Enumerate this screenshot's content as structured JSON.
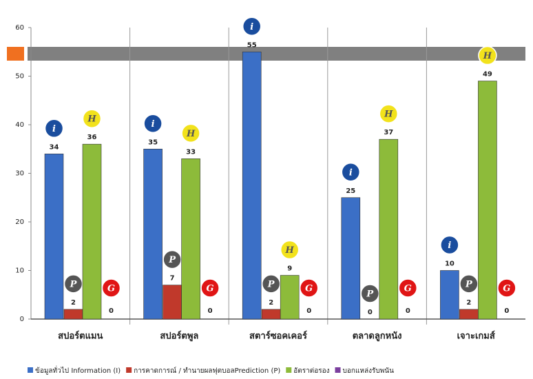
{
  "chart_data": {
    "type": "bar",
    "categories": [
      "สปอร์ตแมน",
      "สปอร์ตพูล",
      "สตาร์ซอคเคอร์",
      "ตลาดลูกหนัง",
      "เจาะเกมส์"
    ],
    "series": [
      {
        "name": "ข้อมูลทั่วไป Information (I)",
        "color": "#3b6fc6",
        "icon": "i",
        "icon_color": "#1a4d9e",
        "values": [
          34,
          35,
          55,
          25,
          10
        ]
      },
      {
        "name": "การคาดการณ์ / ทำนายผลฟุตบอลPrediction (P)",
        "color": "#c0392b",
        "icon": "P",
        "icon_color": "#555555",
        "values": [
          2,
          7,
          2,
          0,
          2
        ]
      },
      {
        "name": "อัตราต่อรอง",
        "color": "#8dbb3a",
        "icon": "H",
        "icon_color": "#f2e21c",
        "values": [
          36,
          33,
          9,
          37,
          49
        ]
      },
      {
        "name": "บอกแหล่งรับพนัน",
        "color": "#7b3f9e",
        "icon": "G",
        "icon_color": "#e01515",
        "values": [
          0,
          0,
          0,
          0,
          0
        ]
      }
    ],
    "ylim": [
      0,
      60
    ],
    "yticks": [
      0,
      10,
      20,
      30,
      40,
      50,
      60
    ],
    "grid": false
  }
}
